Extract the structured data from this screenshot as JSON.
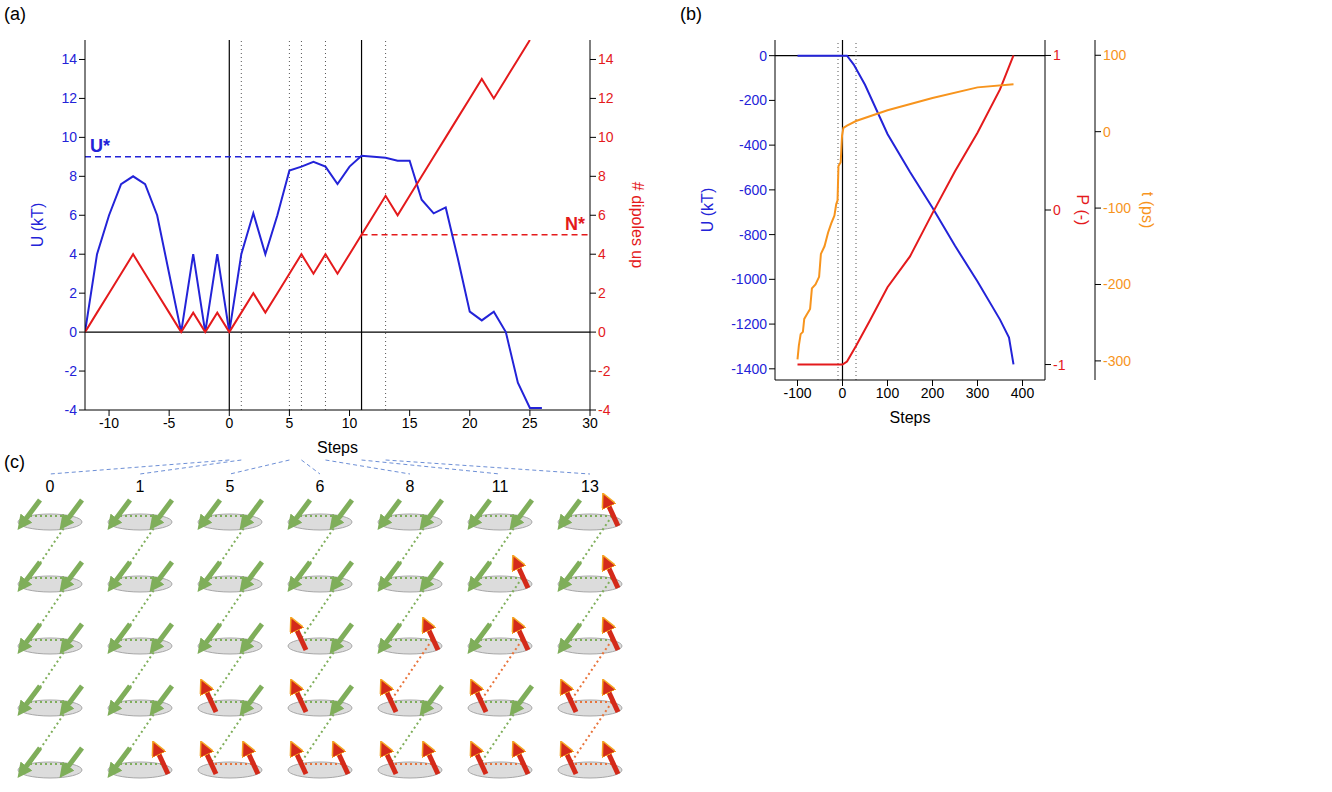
{
  "chart_data": [
    {
      "panel": "(a)",
      "type": "line",
      "x_label": "Steps",
      "y_label": "U (kT)",
      "y2_label": "# dipoles up",
      "xlim": [
        -12,
        30
      ],
      "xticks": [
        -10,
        -5,
        0,
        5,
        10,
        15,
        20,
        25,
        30
      ],
      "ylim": [
        -4,
        15
      ],
      "yticks": [
        -4,
        -2,
        0,
        2,
        4,
        6,
        8,
        10,
        12,
        14
      ],
      "y2lim": [
        -4,
        15
      ],
      "y2ticks": [
        -4,
        -2,
        0,
        2,
        4,
        6,
        8,
        10,
        12,
        14
      ],
      "x": [
        -12,
        -11,
        -10,
        -9,
        -8,
        -7,
        -6,
        -5,
        -4,
        -3,
        -2,
        -1,
        0,
        1,
        2,
        3,
        4,
        5,
        6,
        7,
        8,
        9,
        10,
        11,
        12,
        13,
        14,
        15,
        16,
        17,
        18,
        19,
        20,
        21,
        22,
        23,
        24,
        25,
        26
      ],
      "series": [
        {
          "color": "#2323d8",
          "values": [
            0,
            4,
            6,
            7.6,
            8,
            7.6,
            6,
            3,
            0,
            4,
            0,
            4,
            0,
            4,
            6.1,
            4,
            6,
            8.3,
            8.5,
            8.75,
            8.5,
            7.6,
            8.5,
            9.05,
            9.0,
            8.95,
            8.8,
            8.8,
            6.8,
            6.1,
            6.4,
            3.8,
            1.05,
            0.6,
            1.05,
            0,
            -2.6,
            -3.9,
            -3.9
          ]
        },
        {
          "color": "#e41a1c",
          "axis": "y2",
          "values": [
            0,
            1,
            2,
            3,
            4,
            3,
            2,
            1,
            0,
            1,
            0,
            1,
            0,
            1,
            2,
            1,
            2,
            3,
            4,
            3,
            4,
            3,
            4,
            5,
            6,
            7,
            6,
            7,
            8,
            9,
            10,
            11,
            12,
            13,
            12,
            13,
            14,
            15,
            null
          ]
        }
      ],
      "annotations": [
        {
          "text": "U*",
          "y": 9,
          "x_from": -12,
          "x_to": 11,
          "axis": "y"
        },
        {
          "text": "N*",
          "y": 5,
          "x_from": 11,
          "x_to": 30,
          "axis": "y2"
        }
      ],
      "vlines": [
        {
          "x": 0,
          "line_style": "solid"
        },
        {
          "x": 11,
          "line_style": "solid"
        },
        {
          "x": 1,
          "line_style": "dotted"
        },
        {
          "x": 5,
          "line_style": "dotted"
        },
        {
          "x": 6,
          "line_style": "dotted"
        },
        {
          "x": 8,
          "line_style": "dotted"
        },
        {
          "x": 13,
          "line_style": "dotted"
        }
      ],
      "hlines": [
        {
          "y": 0,
          "axis": "y"
        }
      ]
    },
    {
      "panel": "(b)",
      "type": "line",
      "x_label": "Steps",
      "y_label": "U (kT)",
      "y2_label": "P (-)",
      "y3_label": "t (ps)",
      "xlim": [
        -150,
        450
      ],
      "xticks": [
        -100,
        0,
        100,
        200,
        300,
        400
      ],
      "ylim": [
        -1450,
        70
      ],
      "yticks": [
        -1400,
        -1200,
        -1000,
        -800,
        -600,
        -400,
        -200,
        0
      ],
      "y2lim": [
        -1.1,
        1.1
      ],
      "y2ticks": [
        -1,
        0,
        1
      ],
      "y3lim": [
        -325,
        120
      ],
      "y3ticks": [
        -300,
        -200,
        -100,
        0,
        100
      ],
      "series": [
        {
          "color": "#2323d8",
          "x": [
            -100,
            0,
            10,
            25,
            50,
            100,
            150,
            200,
            250,
            300,
            350,
            370,
            380
          ],
          "values": [
            0,
            0,
            0,
            -40,
            -130,
            -350,
            -520,
            -680,
            -850,
            -1010,
            -1180,
            -1260,
            -1380
          ]
        },
        {
          "color": "#e41a1c",
          "axis": "y2",
          "x": [
            -100,
            0,
            10,
            30,
            60,
            100,
            150,
            200,
            250,
            300,
            350,
            380
          ],
          "values": [
            -1,
            -1,
            -0.98,
            -0.88,
            -0.72,
            -0.5,
            -0.3,
            -0.02,
            0.25,
            0.5,
            0.78,
            1
          ]
        },
        {
          "color": "#f7941d",
          "axis": "y3",
          "x": [
            -100,
            -97,
            -93,
            -88,
            -85,
            -80,
            -72,
            -68,
            -60,
            -52,
            -48,
            -40,
            -32,
            -25,
            -18,
            -14,
            -11,
            -9,
            -4,
            -1,
            2,
            10,
            30,
            100,
            200,
            300,
            380
          ],
          "values": [
            -298,
            -280,
            -265,
            -262,
            -245,
            -240,
            -232,
            -205,
            -200,
            -190,
            -160,
            -150,
            -132,
            -120,
            -110,
            -95,
            -90,
            -45,
            -40,
            -5,
            5,
            8,
            14,
            28,
            44,
            58,
            62
          ]
        }
      ],
      "vlines": [
        {
          "x": 0,
          "line_style": "solid"
        },
        {
          "x": -10,
          "line_style": "dotted"
        },
        {
          "x": 30,
          "line_style": "dotted"
        }
      ],
      "hlines": [
        {
          "y": 0,
          "axis": "y"
        }
      ]
    }
  ],
  "diagram": {
    "panel": "(c)",
    "steps": [
      {
        "step": 0,
        "dipoles": [
          0,
          0,
          0,
          0,
          0,
          0,
          0,
          0,
          0,
          0
        ]
      },
      {
        "step": 1,
        "dipoles": [
          0,
          0,
          0,
          0,
          0,
          0,
          0,
          0,
          0,
          1
        ]
      },
      {
        "step": 5,
        "dipoles": [
          0,
          0,
          0,
          0,
          0,
          0,
          1,
          0,
          1,
          1
        ]
      },
      {
        "step": 6,
        "dipoles": [
          0,
          0,
          0,
          0,
          1,
          0,
          1,
          0,
          1,
          1
        ]
      },
      {
        "step": 8,
        "dipoles": [
          0,
          0,
          0,
          0,
          0,
          1,
          1,
          0,
          1,
          1
        ]
      },
      {
        "step": 11,
        "dipoles": [
          0,
          0,
          0,
          1,
          0,
          1,
          1,
          0,
          1,
          1
        ]
      },
      {
        "step": 13,
        "dipoles": [
          0,
          1,
          0,
          1,
          0,
          1,
          1,
          1,
          1,
          1
        ]
      }
    ]
  }
}
